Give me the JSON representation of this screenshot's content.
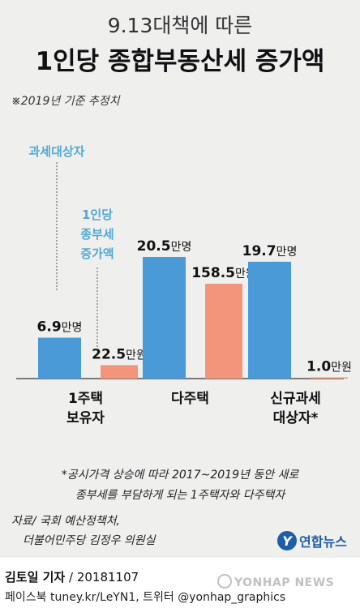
{
  "header": {
    "title_line1": "9.13대책에 따른",
    "title_line2": "1인당 종합부동산세 증가액",
    "basis": "※2019년 기준 추정치"
  },
  "chart_data": {
    "type": "bar",
    "categories": [
      [
        "1주택",
        "보유자"
      ],
      [
        "다주택"
      ],
      [
        "신규과세",
        "대상자*"
      ]
    ],
    "series": [
      {
        "name": "과세대상자",
        "values": [
          6.9,
          20.5,
          19.7
        ],
        "unit": "만명",
        "color": "#4a9ad8"
      },
      {
        "name": "1인당 종부세 증가액",
        "values": [
          22.5,
          158.5,
          1.0
        ],
        "unit": "만원",
        "color": "#f3957a"
      }
    ],
    "legend": [
      [
        "과세대상자"
      ],
      [
        "1인당",
        "종부세",
        "증가액"
      ]
    ],
    "legend_color": "#52a9d4",
    "value_labels": [
      [
        {
          "num": "6.9",
          "unit": "만명"
        },
        {
          "num": "20.5",
          "unit": "만명"
        },
        {
          "num": "19.7",
          "unit": "만명"
        }
      ],
      [
        {
          "num": "22.5",
          "unit": "만원"
        },
        {
          "num": "158.5",
          "unit": "만원"
        },
        {
          "num": "1.0",
          "unit": "만원"
        }
      ]
    ]
  },
  "footnote": {
    "line1": "*공시가격 상승에 따라 2017~2019년 동안 새로",
    "line2": "종부세를 부담하게 되는 1주택자와 다주택자"
  },
  "source": {
    "line1": "자료/ 국회 예산정책처,",
    "line2": "더불어민주당 김정우 의원실"
  },
  "logo": {
    "mark": "Y",
    "text": "연합뉴스"
  },
  "credit": {
    "name": "김토일 기자",
    "date": " / 20181107"
  },
  "social": "페이스북 tuney.kr/LeYN1, 트위터 @yonhap_graphics",
  "watermark": "YONHAP NEWS"
}
